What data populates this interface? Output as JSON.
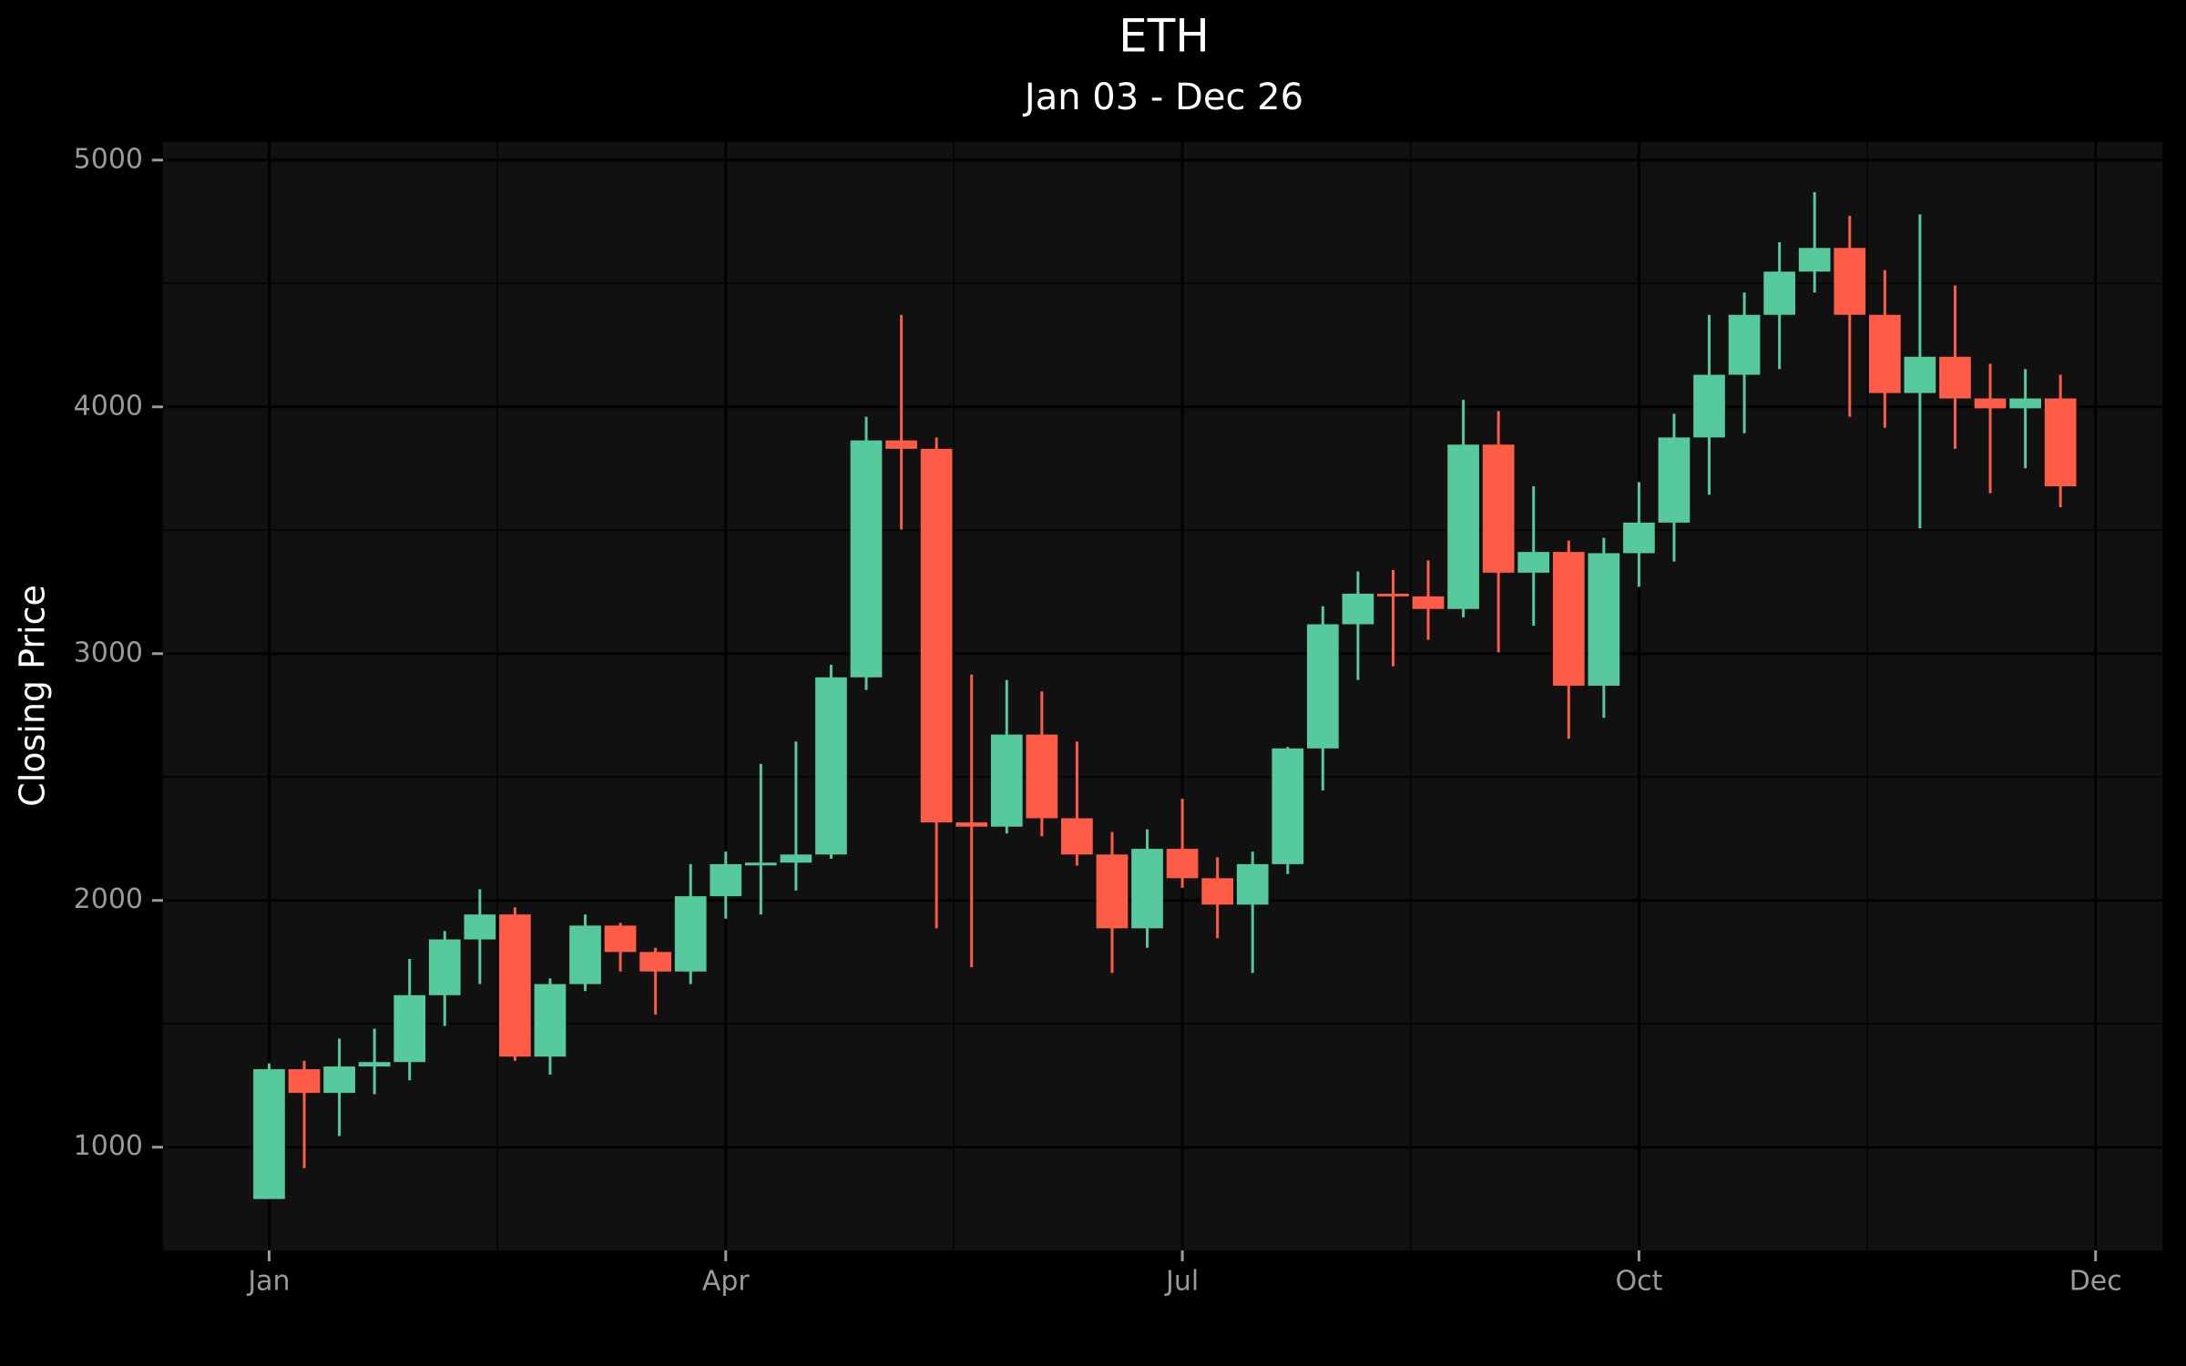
{
  "chart_data": {
    "type": "candlestick",
    "title": "ETH",
    "subtitle": "Jan 03 - Dec 26",
    "y_label": "Closing Price",
    "x": [
      0,
      1,
      2,
      3,
      4,
      5,
      6,
      7,
      8,
      9,
      10,
      11,
      12,
      13,
      14,
      15,
      16,
      17,
      18,
      19,
      20,
      21,
      22,
      23,
      24,
      25,
      26,
      27,
      28,
      29,
      30,
      31,
      32,
      33,
      34,
      35,
      36,
      37,
      38,
      39,
      40,
      41,
      42,
      43,
      44,
      45,
      46,
      47,
      48,
      49,
      50,
      51
    ],
    "open": [
      790,
      1316,
      1220,
      1327,
      1345,
      1616,
      1842,
      1943,
      1367,
      1661,
      1898,
      1791,
      1712,
      2017,
      2147,
      2153,
      2186,
      2904,
      3864,
      3830,
      2316,
      2299,
      2672,
      2333,
      2186,
      1887,
      2209,
      2090,
      1983,
      2147,
      2616,
      3119,
      3243,
      3232,
      3181,
      3847,
      3328,
      3412,
      2870,
      3407,
      3531,
      3876,
      4130,
      4373,
      4548,
      4644,
      4373,
      4056,
      4203,
      4034,
      3994,
      4034
    ],
    "high": [
      1340,
      1350,
      1440,
      1480,
      1763,
      1876,
      2045,
      1972,
      1684,
      1943,
      1909,
      1808,
      2147,
      2198,
      2553,
      2644,
      2955,
      3960,
      4373,
      3876,
      2915,
      2893,
      2847,
      2644,
      2277,
      2288,
      2412,
      2175,
      2198,
      2622,
      3192,
      3333,
      3339,
      3378,
      4028,
      3983,
      3678,
      3458,
      3469,
      3695,
      3972,
      4373,
      4463,
      4667,
      4870,
      4774,
      4554,
      4780,
      4492,
      4175,
      4153,
      4130
    ],
    "low": [
      790,
      915,
      1045,
      1215,
      1271,
      1491,
      1661,
      1350,
      1294,
      1633,
      1712,
      1537,
      1661,
      1926,
      1943,
      2040,
      2169,
      2853,
      3503,
      1887,
      1729,
      2271,
      2260,
      2141,
      1706,
      1808,
      2051,
      1847,
      1706,
      2107,
      2446,
      2893,
      2949,
      3056,
      3147,
      3005,
      3113,
      2655,
      2740,
      3271,
      3373,
      3644,
      3893,
      4153,
      4463,
      3960,
      3915,
      3508,
      3830,
      3650,
      3751,
      3593
    ],
    "close": [
      1316,
      1220,
      1327,
      1345,
      1616,
      1842,
      1943,
      1367,
      1661,
      1898,
      1791,
      1712,
      2017,
      2147,
      2153,
      2186,
      2904,
      3864,
      3830,
      2316,
      2299,
      2672,
      2333,
      2186,
      1887,
      2209,
      2090,
      1983,
      2147,
      2616,
      3119,
      3243,
      3232,
      3181,
      3847,
      3328,
      3412,
      2870,
      3407,
      3531,
      3876,
      4130,
      4373,
      4548,
      4644,
      4373,
      4056,
      4203,
      4034,
      3994,
      4034,
      3678
    ],
    "increasing_color": "#56c99d",
    "decreasing_color": "#ff5c47",
    "xlim": [
      -3.02,
      53.9
    ],
    "ylim": [
      582,
      5073
    ],
    "xticks": [
      {
        "value": 0,
        "label": "Jan"
      },
      {
        "value": 13,
        "label": "Apr"
      },
      {
        "value": 26,
        "label": "Jul"
      },
      {
        "value": 39,
        "label": "Oct"
      },
      {
        "value": 52,
        "label": "Dec"
      }
    ],
    "yticks": [
      1000,
      2000,
      3000,
      4000,
      5000
    ],
    "grid": true,
    "minor_grid": true
  }
}
